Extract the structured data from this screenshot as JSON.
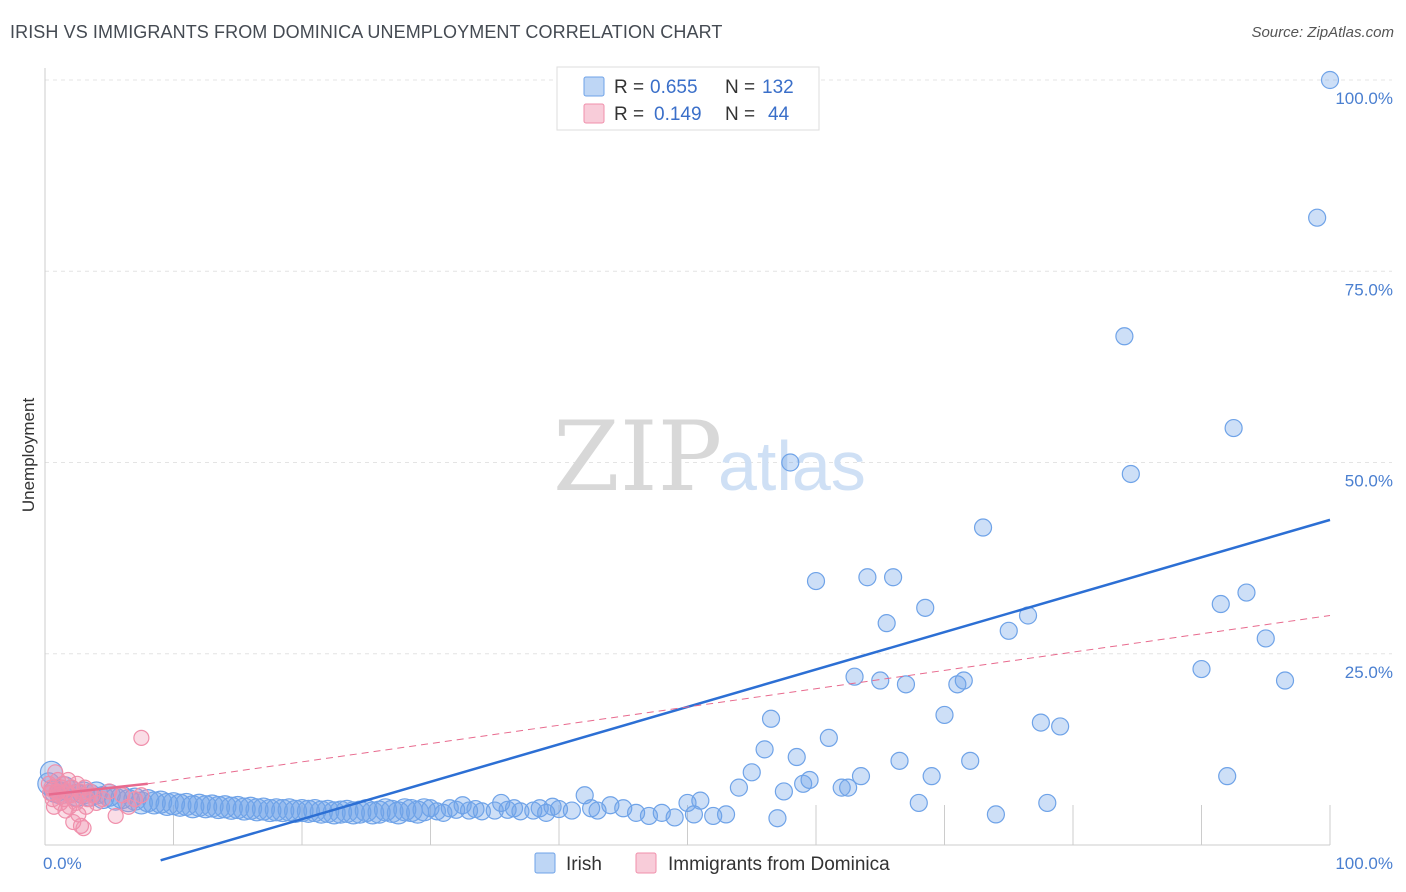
{
  "title": "IRISH VS IMMIGRANTS FROM DOMINICA UNEMPLOYMENT CORRELATION CHART",
  "source": "Source: ZipAtlas.com",
  "watermark": {
    "zip": "ZIP",
    "atlas": "atlas"
  },
  "legend": {
    "r_label": "R =",
    "n_label": "N =",
    "series": [
      {
        "name": "Irish",
        "r": "0.655",
        "n": "132",
        "color": "#6fa3e8"
      },
      {
        "name": "Immigrants from Dominica",
        "r": "0.149",
        "n": "44",
        "color": "#f08fab"
      }
    ]
  },
  "chart_data": {
    "type": "scatter",
    "title": "IRISH VS IMMIGRANTS FROM DOMINICA UNEMPLOYMENT CORRELATION CHART",
    "xlabel": "",
    "ylabel": "Unemployment",
    "xlim": [
      0,
      100
    ],
    "ylim": [
      0,
      100
    ],
    "x_tick_labels": [
      "0.0%",
      "100.0%"
    ],
    "y_tick_labels": [
      "25.0%",
      "50.0%",
      "75.0%",
      "100.0%"
    ],
    "y_ticks": [
      25,
      50,
      75,
      100
    ],
    "grid": true,
    "series": [
      {
        "name": "Irish",
        "color": "#6fa3e8",
        "trend": {
          "x": [
            9,
            100
          ],
          "y": [
            -2,
            42.5
          ],
          "style": "solid",
          "color": "#2c6fd4"
        },
        "points": [
          [
            0.5,
            9.5
          ],
          [
            0.8,
            7
          ],
          [
            1.2,
            6.8
          ],
          [
            1.5,
            7.5
          ],
          [
            2,
            7
          ],
          [
            2.5,
            6.5
          ],
          [
            3,
            6.8
          ],
          [
            3.5,
            6.5
          ],
          [
            4,
            6.8
          ],
          [
            4.5,
            6.2
          ],
          [
            5,
            6.5
          ],
          [
            5.5,
            6
          ],
          [
            6,
            6.2
          ],
          [
            6.5,
            5.8
          ],
          [
            7,
            6
          ],
          [
            7.5,
            5.5
          ],
          [
            8,
            5.8
          ],
          [
            8.5,
            5.5
          ],
          [
            9,
            5.6
          ],
          [
            9.5,
            5.3
          ],
          [
            10,
            5.4
          ],
          [
            10.5,
            5.2
          ],
          [
            11,
            5.3
          ],
          [
            11.5,
            5
          ],
          [
            12,
            5.2
          ],
          [
            12.5,
            5
          ],
          [
            13,
            5.1
          ],
          [
            13.5,
            4.9
          ],
          [
            14,
            5
          ],
          [
            14.5,
            4.8
          ],
          [
            15,
            4.9
          ],
          [
            15.5,
            4.7
          ],
          [
            16,
            4.8
          ],
          [
            16.5,
            4.6
          ],
          [
            17,
            4.7
          ],
          [
            17.5,
            4.5
          ],
          [
            18,
            4.6
          ],
          [
            18.5,
            4.5
          ],
          [
            19,
            4.6
          ],
          [
            19.5,
            4.4
          ],
          [
            20,
            4.5
          ],
          [
            20.5,
            4.4
          ],
          [
            21,
            4.5
          ],
          [
            21.5,
            4.3
          ],
          [
            22,
            4.4
          ],
          [
            22.5,
            4.2
          ],
          [
            23,
            4.3
          ],
          [
            23.5,
            4.4
          ],
          [
            24,
            4.2
          ],
          [
            24.5,
            4.3
          ],
          [
            25,
            4.5
          ],
          [
            25.5,
            4.2
          ],
          [
            26,
            4.3
          ],
          [
            26.5,
            4.6
          ],
          [
            27,
            4.4
          ],
          [
            27.5,
            4.2
          ],
          [
            28,
            4.6
          ],
          [
            28.5,
            4.5
          ],
          [
            29,
            4.3
          ],
          [
            29.5,
            4.6
          ],
          [
            30,
            4.8
          ],
          [
            30.5,
            4.4
          ],
          [
            31,
            4.2
          ],
          [
            31.5,
            4.8
          ],
          [
            32,
            4.6
          ],
          [
            32.5,
            5.2
          ],
          [
            33,
            4.5
          ],
          [
            33.5,
            4.7
          ],
          [
            34,
            4.4
          ],
          [
            35,
            4.5
          ],
          [
            35.5,
            5.5
          ],
          [
            36,
            4.6
          ],
          [
            36.5,
            4.8
          ],
          [
            37,
            4.4
          ],
          [
            38,
            4.5
          ],
          [
            38.5,
            4.8
          ],
          [
            39,
            4.2
          ],
          [
            39.5,
            5
          ],
          [
            40,
            4.7
          ],
          [
            41,
            4.5
          ],
          [
            42,
            6.5
          ],
          [
            42.5,
            4.8
          ],
          [
            43,
            4.5
          ],
          [
            44,
            5.2
          ],
          [
            45,
            4.8
          ],
          [
            46,
            4.2
          ],
          [
            47,
            3.8
          ],
          [
            48,
            4.2
          ],
          [
            49,
            3.6
          ],
          [
            50,
            5.5
          ],
          [
            50.5,
            4
          ],
          [
            51,
            5.8
          ],
          [
            52,
            3.8
          ],
          [
            53,
            4
          ],
          [
            54,
            7.5
          ],
          [
            55,
            9.5
          ],
          [
            56,
            12.5
          ],
          [
            56.5,
            16.5
          ],
          [
            57,
            3.5
          ],
          [
            57.5,
            7
          ],
          [
            58,
            50
          ],
          [
            58.5,
            11.5
          ],
          [
            59,
            8
          ],
          [
            59.5,
            8.5
          ],
          [
            60,
            34.5
          ],
          [
            61,
            14
          ],
          [
            62,
            7.5
          ],
          [
            62.5,
            7.5
          ],
          [
            63,
            22
          ],
          [
            63.5,
            9
          ],
          [
            64,
            35
          ],
          [
            65,
            21.5
          ],
          [
            65.5,
            29
          ],
          [
            66,
            35
          ],
          [
            66.5,
            11
          ],
          [
            67,
            21
          ],
          [
            68,
            5.5
          ],
          [
            68.5,
            31
          ],
          [
            69,
            9
          ],
          [
            70,
            17
          ],
          [
            71,
            21
          ],
          [
            71.5,
            21.5
          ],
          [
            72,
            11
          ],
          [
            73,
            41.5
          ],
          [
            74,
            4
          ],
          [
            75,
            28
          ],
          [
            76.5,
            30
          ],
          [
            77.5,
            16
          ],
          [
            78,
            5.5
          ],
          [
            79,
            15.5
          ],
          [
            84,
            66.5
          ],
          [
            84.5,
            48.5
          ],
          [
            90,
            23
          ],
          [
            91.5,
            31.5
          ],
          [
            92,
            9
          ],
          [
            92.5,
            54.5
          ],
          [
            93.5,
            33
          ],
          [
            95,
            27
          ],
          [
            96.5,
            21.5
          ],
          [
            99,
            82
          ],
          [
            100,
            100
          ],
          [
            0.3,
            8
          ]
        ]
      },
      {
        "name": "Immigrants from Dominica",
        "color": "#f08fab",
        "trend_solid": {
          "x": [
            0.3,
            8
          ],
          "y": [
            6.6,
            8
          ]
        },
        "trend": {
          "x": [
            8,
            100
          ],
          "y": [
            8,
            30
          ],
          "style": "dashed",
          "color": "#e86a8e"
        },
        "points": [
          [
            0.3,
            8
          ],
          [
            0.5,
            7.5
          ],
          [
            0.6,
            6
          ],
          [
            0.7,
            5
          ],
          [
            0.8,
            9.5
          ],
          [
            0.9,
            7
          ],
          [
            1,
            8.5
          ],
          [
            1.1,
            6.5
          ],
          [
            1.2,
            5.5
          ],
          [
            1.3,
            7.5
          ],
          [
            1.4,
            8
          ],
          [
            1.5,
            6
          ],
          [
            1.6,
            4.5
          ],
          [
            1.7,
            7
          ],
          [
            1.8,
            8.5
          ],
          [
            1.9,
            5
          ],
          [
            2,
            6.5
          ],
          [
            2.1,
            7.5
          ],
          [
            2.2,
            3
          ],
          [
            2.3,
            6
          ],
          [
            2.4,
            5.5
          ],
          [
            2.5,
            8
          ],
          [
            2.6,
            4
          ],
          [
            2.7,
            7
          ],
          [
            2.8,
            2.5
          ],
          [
            2.9,
            6.5
          ],
          [
            3,
            2.2
          ],
          [
            3.1,
            7.5
          ],
          [
            3.2,
            5
          ],
          [
            3.3,
            6
          ],
          [
            3.5,
            7
          ],
          [
            3.7,
            6.5
          ],
          [
            4,
            5.5
          ],
          [
            4.5,
            6
          ],
          [
            5,
            7
          ],
          [
            5.5,
            3.8
          ],
          [
            6,
            6.5
          ],
          [
            6.5,
            5
          ],
          [
            7,
            6
          ],
          [
            7.5,
            6.5
          ],
          [
            7.5,
            14
          ],
          [
            0.4,
            6.8
          ],
          [
            0.6,
            7.2
          ],
          [
            1,
            6.9
          ]
        ]
      }
    ]
  }
}
